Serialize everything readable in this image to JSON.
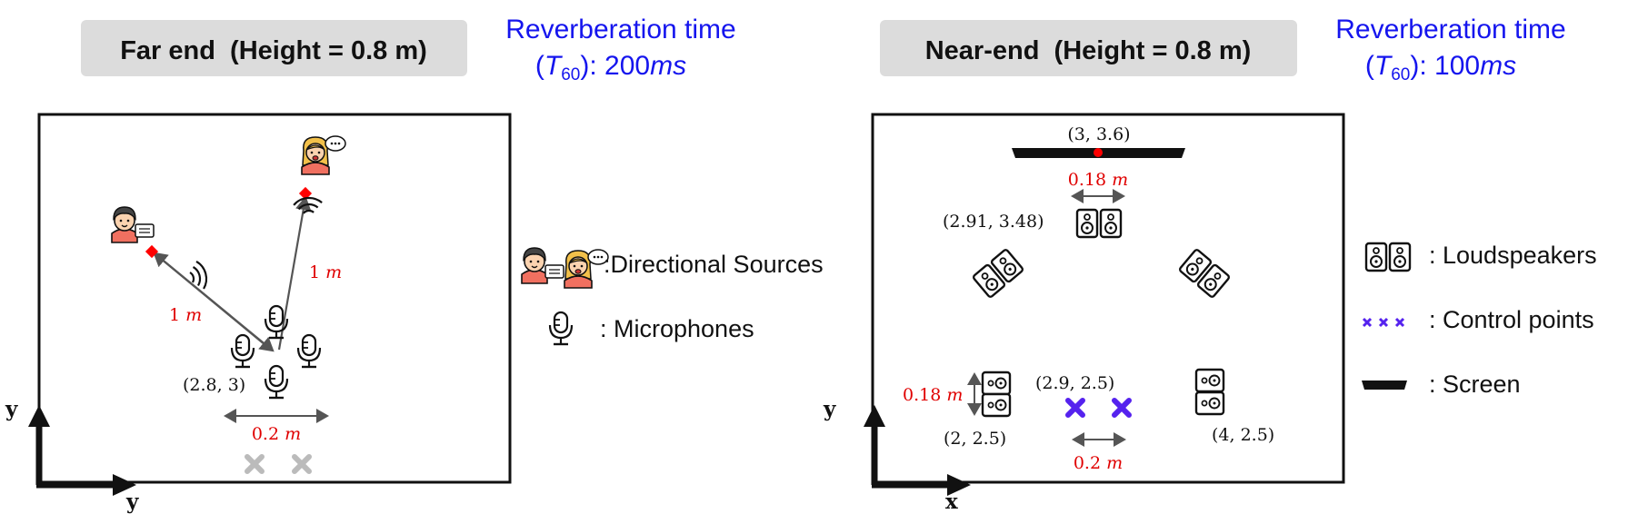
{
  "far_end": {
    "header": "Far end  (Height = 0.8 m)",
    "reverb_line1": "Reverberation time",
    "reverb_T": "T",
    "reverb_sub": "60",
    "reverb_value": "): 200",
    "reverb_unit": "ms",
    "dist_left": "1",
    "dist_right": "1",
    "dist_unit": "m",
    "mic_coord": "(2.8, 3)",
    "spacing_value": "0.2",
    "spacing_unit": "m",
    "axis_vertical": "y",
    "axis_horizontal": "y"
  },
  "near_end": {
    "header": "Near-end  (Height = 0.8 m)",
    "reverb_line1": "Reverberation time",
    "reverb_T": "T",
    "reverb_sub": "60",
    "reverb_value": "): 100",
    "reverb_unit": "ms",
    "screen_coord": "(3, 3.6)",
    "screen_spacing_value": "0.18",
    "screen_spacing_unit": "m",
    "top_speaker_coord": "(2.91, 3.48)",
    "left_spacing_value": "0.18",
    "left_spacing_unit": "m",
    "control_coord": "(2.9, 2.5)",
    "left_speaker_coord": "(2, 2.5)",
    "right_speaker_coord": "(4, 2.5)",
    "control_spacing_value": "0.2",
    "control_spacing_unit": "m",
    "axis_vertical": "y",
    "axis_horizontal": "x"
  },
  "legend_middle": {
    "directional": ":Directional Sources",
    "microphones": ": Microphones"
  },
  "legend_right": {
    "loudspeakers": ": Loudspeakers",
    "control_points": ": Control points",
    "screen": ": Screen"
  },
  "colors": {
    "header_bg": "#dcdcdc",
    "reverb_text": "#1515ee",
    "dimension_text": "#e00000",
    "control_point": "#5522ee",
    "inactive_point": "#bbbbbb",
    "source_marker": "#ff0000"
  }
}
